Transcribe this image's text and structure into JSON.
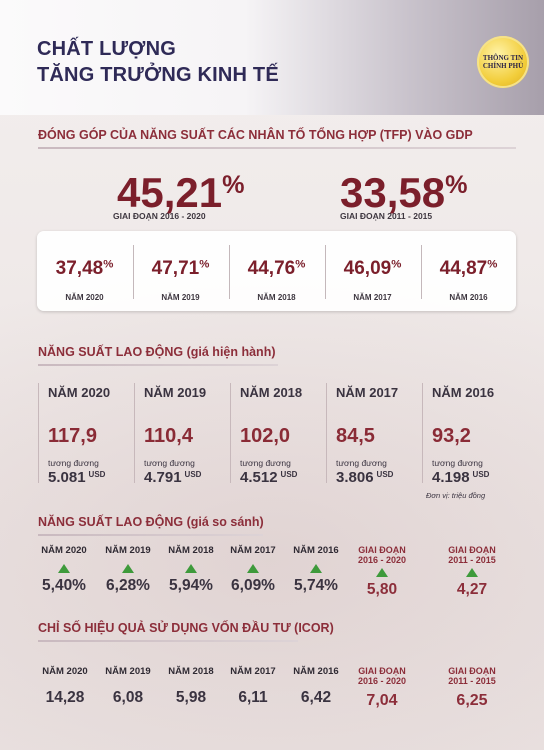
{
  "header": {
    "title_line1": "CHẤT LƯỢNG",
    "title_line2": "TĂNG TRƯỞNG KINH TẾ",
    "logo_line1": "THÔNG TIN",
    "logo_line2": "CHÍNH PHỦ"
  },
  "tfp": {
    "title": "ĐÓNG GÓP CỦA NĂNG SUẤT CÁC NHÂN TỐ TỔNG HỢP (TFP) VÀO GDP",
    "big": [
      {
        "value": "45,21",
        "unit": "%",
        "caption": "GIAI ĐOẠN 2016 - 2020"
      },
      {
        "value": "33,58",
        "unit": "%",
        "caption": "GIAI ĐOẠN 2011 - 2015"
      }
    ],
    "years": [
      {
        "value": "37,48",
        "unit": "%",
        "caption": "NĂM 2020"
      },
      {
        "value": "47,71",
        "unit": "%",
        "caption": "NĂM 2019"
      },
      {
        "value": "44,76",
        "unit": "%",
        "caption": "NĂM 2018"
      },
      {
        "value": "46,09",
        "unit": "%",
        "caption": "NĂM 2017"
      },
      {
        "value": "44,87",
        "unit": "%",
        "caption": "NĂM 2016"
      }
    ]
  },
  "labor_current": {
    "title": "NĂNG SUẤT LAO ĐỘNG (giá hiện hành)",
    "equiv_label": "tương đương",
    "usd_label": "USD",
    "unit_note": "Đơn vị: triệu đồng",
    "years": [
      {
        "year": "NĂM 2020",
        "value": "117,9",
        "usd": "5.081"
      },
      {
        "year": "NĂM 2019",
        "value": "110,4",
        "usd": "4.791"
      },
      {
        "year": "NĂM 2018",
        "value": "102,0",
        "usd": "4.512"
      },
      {
        "year": "NĂM 2017",
        "value": "84,5",
        "usd": "3.806"
      },
      {
        "year": "NĂM 2016",
        "value": "93,2",
        "usd": "4.198"
      }
    ]
  },
  "labor_compare": {
    "title": "NĂNG SUẤT LAO ĐỘNG (giá so sánh)",
    "years": [
      {
        "year": "NĂM 2020",
        "value": "5,40%"
      },
      {
        "year": "NĂM 2019",
        "value": "6,28%"
      },
      {
        "year": "NĂM 2018",
        "value": "5,94%"
      },
      {
        "year": "NĂM 2017",
        "value": "6,09%"
      },
      {
        "year": "NĂM 2016",
        "value": "5,74%"
      }
    ],
    "periods": [
      {
        "line1": "GIAI ĐOẠN",
        "line2": "2016 - 2020",
        "value": "5,80"
      },
      {
        "line1": "GIAI ĐOẠN",
        "line2": "2011 - 2015",
        "value": "4,27"
      }
    ],
    "arrow_color": "#3e9a3b"
  },
  "icor": {
    "title": "CHỈ SỐ HIỆU QUẢ SỬ DỤNG VỐN ĐẦU TƯ (ICOR)",
    "years": [
      {
        "year": "NĂM 2020",
        "value": "14,28"
      },
      {
        "year": "NĂM 2019",
        "value": "6,08"
      },
      {
        "year": "NĂM 2018",
        "value": "5,98"
      },
      {
        "year": "NĂM 2017",
        "value": "6,11"
      },
      {
        "year": "NĂM 2016",
        "value": "6,42"
      }
    ],
    "periods": [
      {
        "line1": "GIAI ĐOẠN",
        "line2": "2016 - 2020",
        "value": "7,04"
      },
      {
        "line1": "GIAI ĐOẠN",
        "line2": "2011 - 2015",
        "value": "6,25"
      }
    ]
  },
  "colors": {
    "accent": "#7b1f2b",
    "title_navy": "#2f2a57",
    "green": "#3e9a3b"
  }
}
